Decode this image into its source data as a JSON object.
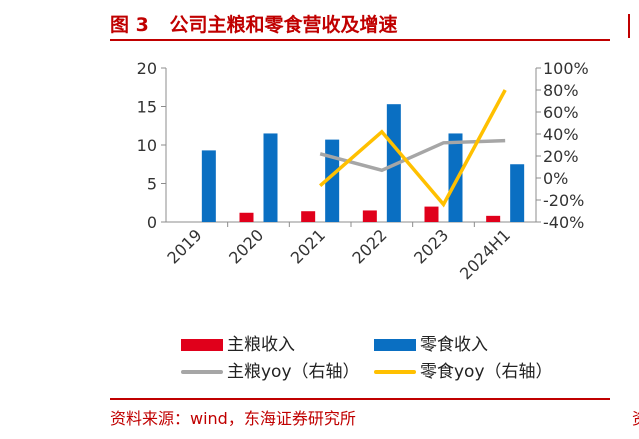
{
  "header": {
    "figure_no": "图 3",
    "title": "公司主粮和零食营收及增速"
  },
  "source": "资料来源：wind，东海证券研究所",
  "colors": {
    "zhuliang_bar": "#e0001b",
    "lingshi_bar": "#0a6fc2",
    "zhuliang_line": "#a6a6a6",
    "lingshi_line": "#ffc000",
    "accent": "#c00000"
  },
  "chart_data": {
    "type": "bar",
    "categories": [
      "2019",
      "2020",
      "2021",
      "2022",
      "2023",
      "2024H1"
    ],
    "ylim": [
      0,
      20
    ],
    "yticks": [
      "0",
      "5",
      "10",
      "15",
      "20"
    ],
    "y2lim": [
      -40,
      100
    ],
    "y2ticks": [
      "-40%",
      "-20%",
      "0%",
      "20%",
      "40%",
      "60%",
      "80%",
      "100%"
    ],
    "series": [
      {
        "name": "主粮收入",
        "kind": "bar",
        "axis": "left",
        "values": [
          null,
          1.2,
          1.4,
          1.5,
          2.0,
          0.8
        ]
      },
      {
        "name": "零食收入",
        "kind": "bar",
        "axis": "left",
        "values": [
          9.3,
          11.5,
          10.7,
          15.3,
          11.5,
          7.5
        ]
      },
      {
        "name": "主粮yoy（右轴）",
        "kind": "line",
        "axis": "right",
        "values": [
          null,
          null,
          22,
          7,
          32,
          34
        ]
      },
      {
        "name": "零食yoy（右轴）",
        "kind": "line",
        "axis": "right",
        "values": [
          null,
          null,
          -7,
          42,
          -24,
          80
        ]
      }
    ]
  }
}
